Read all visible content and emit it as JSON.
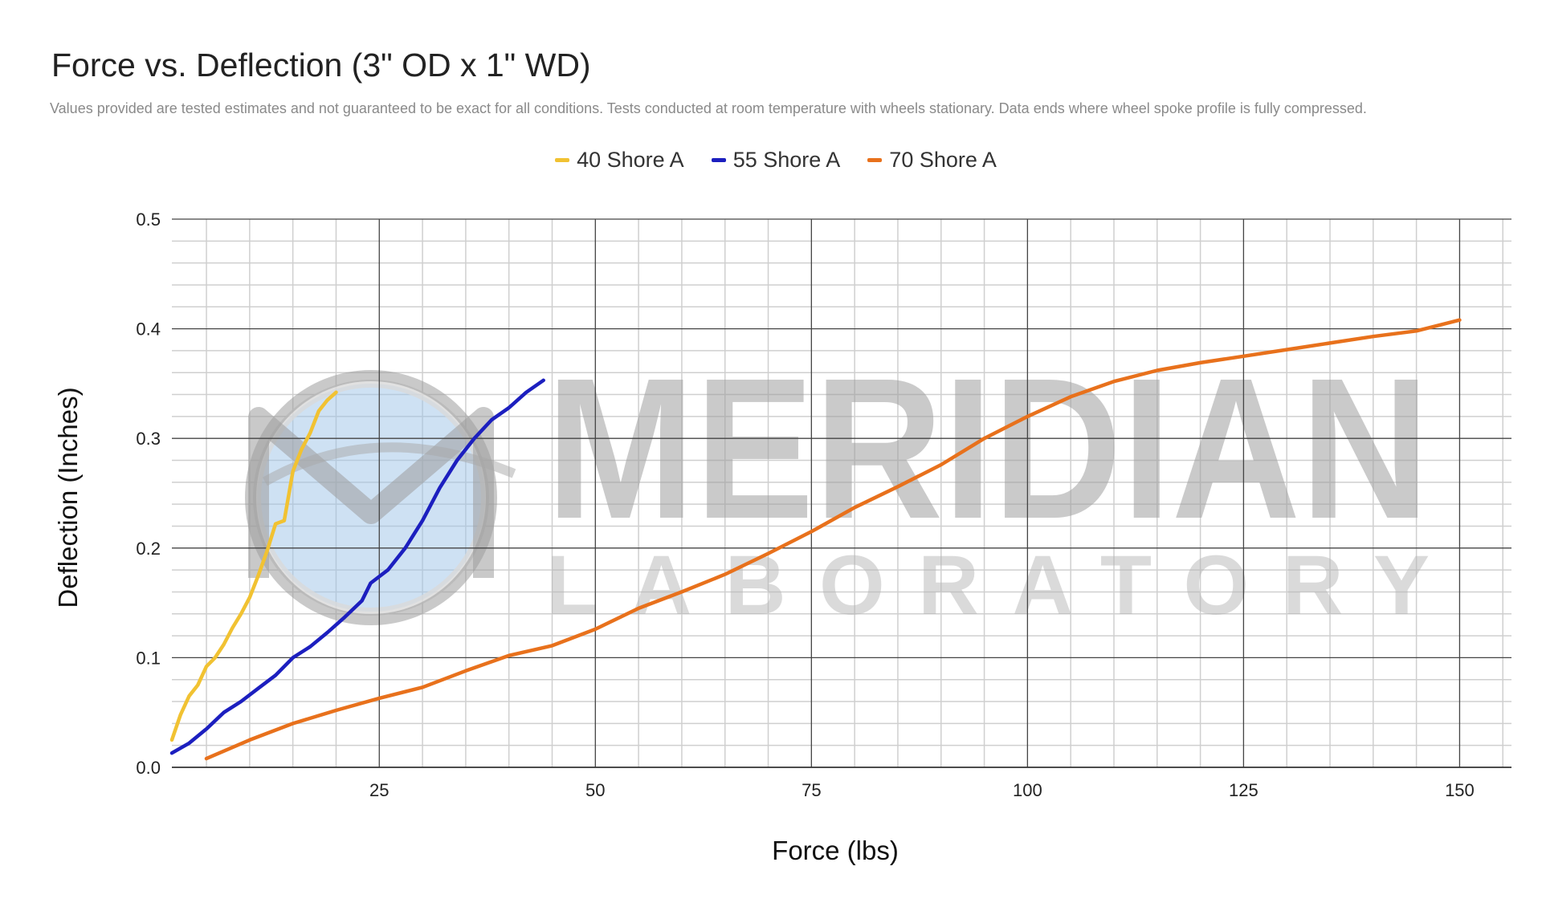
{
  "chart_data": {
    "type": "line",
    "title": "Force vs. Deflection (3\" OD x 1\" WD)",
    "subtitle": "Values provided are tested estimates and not guaranteed to be exact for all conditions. Tests conducted at room temperature with wheels stationary. Data ends where wheel spoke profile is fully compressed.",
    "xlabel": "Force (lbs)",
    "ylabel": "Deflection (Inches)",
    "xlim": [
      1,
      156
    ],
    "ylim": [
      0,
      0.5
    ],
    "x_ticks": [
      25,
      50,
      75,
      100,
      125,
      150
    ],
    "x_tick_labels": [
      "25",
      "50",
      "75",
      "100",
      "125",
      "150"
    ],
    "y_ticks": [
      0,
      0.1,
      0.2,
      0.3,
      0.4,
      0.5
    ],
    "y_tick_labels": [
      "0.0",
      "0.1",
      "0.2",
      "0.3",
      "0.4",
      "0.5"
    ],
    "grid": true,
    "legend_position": "top",
    "series": [
      {
        "name": "40 Shore A",
        "color": "#F1C232",
        "points": [
          [
            1,
            0.025
          ],
          [
            2,
            0.048
          ],
          [
            3,
            0.065
          ],
          [
            4,
            0.075
          ],
          [
            5,
            0.092
          ],
          [
            6,
            0.1
          ],
          [
            7,
            0.112
          ],
          [
            8,
            0.127
          ],
          [
            9,
            0.14
          ],
          [
            10,
            0.155
          ],
          [
            11,
            0.175
          ],
          [
            12,
            0.197
          ],
          [
            13,
            0.222
          ],
          [
            14,
            0.225
          ],
          [
            15,
            0.27
          ],
          [
            16,
            0.29
          ],
          [
            17,
            0.305
          ],
          [
            18,
            0.325
          ],
          [
            19,
            0.335
          ],
          [
            20,
            0.342
          ]
        ]
      },
      {
        "name": "55 Shore A",
        "color": "#1C1FBF",
        "points": [
          [
            1,
            0.013
          ],
          [
            3,
            0.022
          ],
          [
            5,
            0.035
          ],
          [
            7,
            0.05
          ],
          [
            9,
            0.06
          ],
          [
            11,
            0.072
          ],
          [
            13,
            0.084
          ],
          [
            15,
            0.1
          ],
          [
            17,
            0.11
          ],
          [
            19,
            0.123
          ],
          [
            21,
            0.137
          ],
          [
            23,
            0.152
          ],
          [
            24,
            0.168
          ],
          [
            26,
            0.18
          ],
          [
            28,
            0.2
          ],
          [
            30,
            0.225
          ],
          [
            32,
            0.255
          ],
          [
            34,
            0.28
          ],
          [
            36,
            0.3
          ],
          [
            38,
            0.317
          ],
          [
            40,
            0.328
          ],
          [
            42,
            0.342
          ],
          [
            44,
            0.353
          ]
        ]
      },
      {
        "name": "70 Shore A",
        "color": "#E8711C",
        "points": [
          [
            5,
            0.008
          ],
          [
            10,
            0.025
          ],
          [
            15,
            0.04
          ],
          [
            20,
            0.052
          ],
          [
            25,
            0.063
          ],
          [
            30,
            0.073
          ],
          [
            35,
            0.088
          ],
          [
            40,
            0.102
          ],
          [
            45,
            0.111
          ],
          [
            50,
            0.126
          ],
          [
            55,
            0.145
          ],
          [
            60,
            0.16
          ],
          [
            65,
            0.176
          ],
          [
            70,
            0.195
          ],
          [
            75,
            0.215
          ],
          [
            80,
            0.237
          ],
          [
            85,
            0.256
          ],
          [
            90,
            0.276
          ],
          [
            95,
            0.3
          ],
          [
            100,
            0.32
          ],
          [
            105,
            0.338
          ],
          [
            110,
            0.352
          ],
          [
            115,
            0.362
          ],
          [
            120,
            0.369
          ],
          [
            125,
            0.375
          ],
          [
            130,
            0.381
          ],
          [
            135,
            0.387
          ],
          [
            140,
            0.393
          ],
          [
            145,
            0.398
          ],
          [
            150,
            0.408
          ]
        ]
      }
    ]
  },
  "watermark": {
    "brand": "MERIDIAN",
    "tagline": "LABORATORY",
    "icon": "meridian-globe-logo-icon"
  }
}
